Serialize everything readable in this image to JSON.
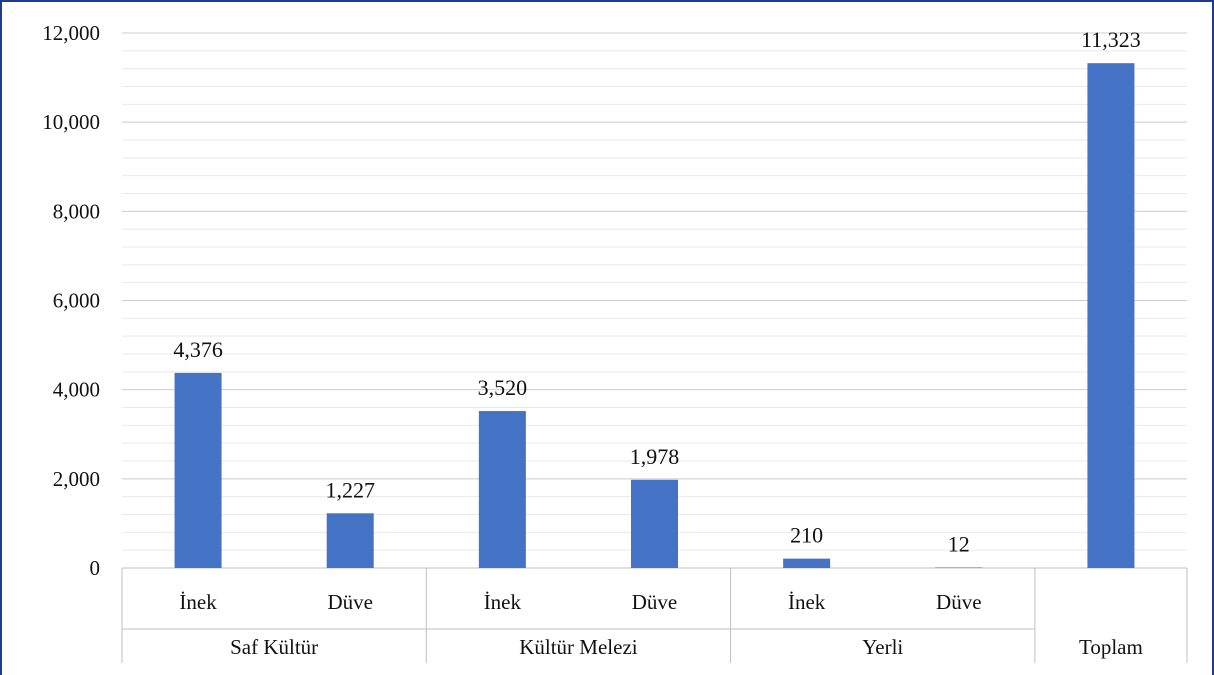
{
  "caption": "",
  "chart_data": {
    "type": "bar",
    "title": "",
    "xlabel": "",
    "ylabel": "",
    "ylim": [
      0,
      12000
    ],
    "yticks": [
      "0",
      "2,000",
      "4,000",
      "6,000",
      "8,000",
      "10,000",
      "12,000"
    ],
    "ytick_values": [
      0,
      2000,
      4000,
      6000,
      8000,
      10000,
      12000
    ],
    "grid": true,
    "bar_color": "#4472c4",
    "groups": [
      {
        "label": "Saf Kültür",
        "bars": [
          {
            "label": "İnek",
            "value": 4376,
            "value_label": "4,376"
          },
          {
            "label": "Düve",
            "value": 1227,
            "value_label": "1,227"
          }
        ]
      },
      {
        "label": "Kültür Melezi",
        "bars": [
          {
            "label": "İnek",
            "value": 3520,
            "value_label": "3,520"
          },
          {
            "label": "Düve",
            "value": 1978,
            "value_label": "1,978"
          }
        ]
      },
      {
        "label": "Yerli",
        "bars": [
          {
            "label": "İnek",
            "value": 210,
            "value_label": "210"
          },
          {
            "label": "Düve",
            "value": 12,
            "value_label": "12"
          }
        ]
      },
      {
        "label": "Toplam",
        "bars": [
          {
            "label": "",
            "value": 11323,
            "value_label": "11,323"
          }
        ]
      }
    ]
  }
}
